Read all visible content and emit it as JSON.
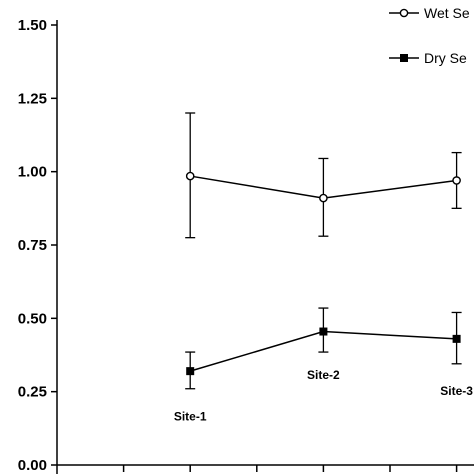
{
  "chart_data": {
    "type": "line",
    "ylim": [
      0,
      1.5
    ],
    "y_ticks": [
      "0.00",
      "0.25",
      "0.50",
      "0.75",
      "1.00",
      "1.25",
      "1.50"
    ],
    "x": [
      2,
      4,
      6
    ],
    "xlim": [
      -1,
      6.4
    ],
    "point_labels": [
      "Site-1",
      "Site-2",
      "Site-3"
    ],
    "series": [
      {
        "name": "Wet Se",
        "marker": "open-circle",
        "values": [
          0.985,
          0.91,
          0.97
        ],
        "err_upper": [
          1.2,
          1.045,
          1.065
        ],
        "err_lower": [
          0.775,
          0.78,
          0.875
        ]
      },
      {
        "name": "Dry Se",
        "marker": "filled-square",
        "values": [
          0.32,
          0.455,
          0.43
        ],
        "err_upper": [
          0.385,
          0.535,
          0.52
        ],
        "err_lower": [
          0.26,
          0.385,
          0.345
        ]
      }
    ],
    "grid": false,
    "legend_position": "top-right"
  },
  "colors": {
    "line": "#000000",
    "background": "#ffffff"
  }
}
